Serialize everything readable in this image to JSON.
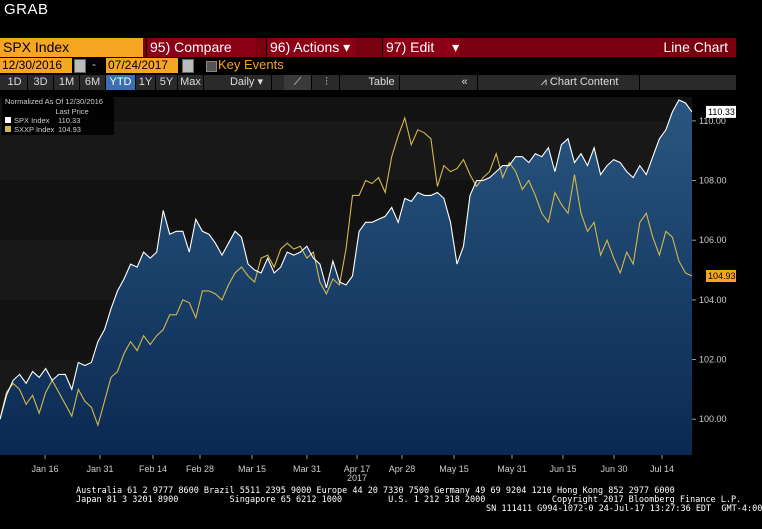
{
  "app_title": "GRAB",
  "toolbar": {
    "ticker": "SPX Index",
    "compare": "95) Compare",
    "actions": "96) Actions",
    "edit": "97) Edit",
    "line_chart": "Line Chart",
    "start_date": "12/30/2016",
    "date_separator": "-",
    "end_date": "07/24/2017",
    "key_events": "Key Events"
  },
  "ranges": [
    "1D",
    "3D",
    "1M",
    "6M",
    "YTD",
    "1Y",
    "5Y",
    "Max"
  ],
  "active_range": "YTD",
  "frequency": "Daily",
  "table_label": "Table",
  "chart_content_label": "Chart Content",
  "legend": {
    "normalized": "Normalized As Of 12/30/2016",
    "last_price_header": "Last Price",
    "items": [
      {
        "name": "SPX Index",
        "value": "110.33",
        "color": "#ffffff"
      },
      {
        "name": "SXXP Index",
        "value": "104.93",
        "color": "#d4b84a"
      }
    ]
  },
  "chart_data": {
    "type": "line",
    "y_ticks": [
      "100.00",
      "102.00",
      "104.00",
      "106.00",
      "108.00",
      "110.00"
    ],
    "ylim": [
      98.8,
      110.8
    ],
    "x_ticks": [
      "Jan 16",
      "Jan 31",
      "Feb 14",
      "Feb 28",
      "Mar 15",
      "Mar 31",
      "Apr 17",
      "Apr 28",
      "May 15",
      "May 31",
      "Jun 15",
      "Jun 30",
      "Jul 14"
    ],
    "x_year_label": "2017",
    "series": [
      {
        "name": "SPX Index",
        "color": "#ffffff",
        "last_label": "110.33",
        "values": [
          100.0,
          100.8,
          101.3,
          101.5,
          101.2,
          101.6,
          101.4,
          101.7,
          101.3,
          101.5,
          101.5,
          101.0,
          101.9,
          101.8,
          101.9,
          102.6,
          103.0,
          103.7,
          104.3,
          104.7,
          105.2,
          105.1,
          105.6,
          105.4,
          105.6,
          107.0,
          106.2,
          106.3,
          106.3,
          105.6,
          106.7,
          106.3,
          106.2,
          105.9,
          105.5,
          105.9,
          106.3,
          106.1,
          105.2,
          105.0,
          104.9,
          105.4,
          104.9,
          105.1,
          105.6,
          105.5,
          105.6,
          105.8,
          105.4,
          105.2,
          104.4,
          105.3,
          104.6,
          104.5,
          104.8,
          106.3,
          106.6,
          106.6,
          106.7,
          106.8,
          107.1,
          106.6,
          107.4,
          107.3,
          107.6,
          107.5,
          107.5,
          107.6,
          107.4,
          106.6,
          105.2,
          105.8,
          107.5,
          108.0,
          108.0,
          108.1,
          108.3,
          108.5,
          108.5,
          108.8,
          108.8,
          108.6,
          108.9,
          108.8,
          109.1,
          108.3,
          109.2,
          109.4,
          108.6,
          108.9,
          108.5,
          109.1,
          108.2,
          108.5,
          108.7,
          108.6,
          108.3,
          108.1,
          108.5,
          108.2,
          108.8,
          109.4,
          109.7,
          110.3,
          110.7,
          110.6,
          110.3
        ]
      },
      {
        "name": "SXXP Index",
        "color": "#d4b84a",
        "last_label": "104.93",
        "values": [
          100.0,
          100.9,
          101.2,
          101.0,
          100.5,
          100.8,
          100.2,
          100.9,
          101.3,
          100.9,
          100.5,
          100.1,
          101.0,
          100.6,
          100.4,
          99.8,
          100.6,
          101.4,
          101.6,
          102.2,
          102.6,
          102.3,
          102.8,
          102.5,
          102.8,
          103.0,
          103.5,
          103.5,
          104.0,
          103.9,
          103.4,
          104.3,
          104.3,
          104.2,
          104.0,
          104.5,
          104.9,
          105.1,
          104.8,
          104.6,
          105.4,
          105.5,
          105.1,
          105.7,
          105.9,
          105.7,
          105.8,
          105.4,
          105.6,
          104.6,
          104.2,
          104.7,
          104.5,
          105.7,
          107.5,
          107.5,
          108.0,
          107.9,
          108.1,
          107.6,
          108.8,
          109.5,
          110.1,
          109.2,
          109.7,
          109.6,
          109.4,
          107.8,
          108.5,
          108.3,
          108.4,
          108.7,
          108.2,
          107.8,
          108.1,
          108.3,
          108.9,
          108.1,
          108.6,
          108.3,
          107.7,
          108.0,
          107.5,
          106.9,
          106.6,
          107.6,
          107.2,
          106.9,
          108.2,
          106.9,
          106.3,
          106.6,
          105.5,
          106.0,
          105.4,
          104.9,
          105.6,
          105.2,
          106.6,
          106.9,
          106.1,
          105.5,
          106.3,
          106.1,
          105.3,
          104.9,
          104.8
        ]
      }
    ]
  },
  "footer": {
    "line1": "Australia 61 2 9777 8600 Brazil 5511 2395 9000 Europe 44 20 7330 7500 Germany 49 69 9204 1210 Hong Kong 852 2977 6000",
    "line2": "Japan 81 3 3201 8900          Singapore 65 6212 1000         U.S. 1 212 318 2000             Copyright 2017 Bloomberg Finance L.P.",
    "line3": "SN 111411 G994-1072-0 24-Jul-17 13:27:36 EDT  GMT-4:00"
  }
}
